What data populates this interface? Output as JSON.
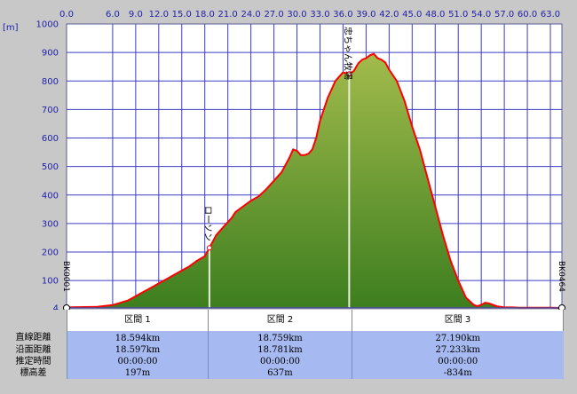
{
  "chart_data": {
    "type": "area",
    "ylabel": "[m]",
    "xlim": [
      0,
      64.5
    ],
    "ylim": [
      4,
      1000
    ],
    "y_ticks": [
      "1000",
      "900",
      "800",
      "700",
      "600",
      "500",
      "400",
      "300",
      "200",
      "100",
      "4"
    ],
    "y_tick_values": [
      1000,
      900,
      800,
      700,
      600,
      500,
      400,
      300,
      200,
      100,
      4
    ],
    "x_ticks": [
      "0.0",
      "6.0",
      "9.0",
      "12.0",
      "15.0",
      "18.0",
      "21.0",
      "24.0",
      "27.0",
      "30.0",
      "33.0",
      "36.0",
      "39.0",
      "42.0",
      "45.0",
      "48.0",
      "51.0",
      "54.0",
      "57.0",
      "60.0",
      "63.0"
    ],
    "x_tick_values": [
      0,
      6,
      9,
      12,
      15,
      18,
      21,
      24,
      27,
      30,
      33,
      36,
      39,
      42,
      45,
      48,
      51,
      54,
      57,
      60,
      63
    ],
    "grid": true,
    "colors": {
      "fill_top": "#a2bb4c",
      "fill_bottom": "#3d7e1f",
      "line": "#ff0000",
      "grid": "#3c3cc8",
      "plot_bg": "#ffffff"
    },
    "x": [
      0,
      4,
      6,
      7,
      8,
      9,
      10,
      11,
      12,
      13,
      14,
      15,
      16,
      17,
      18,
      18.6,
      19.5,
      20.5,
      21.5,
      22,
      23,
      24,
      25,
      26,
      27,
      28,
      29,
      29.5,
      30,
      30.5,
      31,
      31.5,
      32,
      32.5,
      33,
      34,
      35,
      36,
      36.8,
      37.4,
      38,
      38.5,
      39,
      39.5,
      40,
      40.5,
      41,
      41.5,
      42,
      43,
      44,
      45,
      46,
      47,
      48,
      49,
      50,
      51,
      52,
      53,
      53.5,
      54,
      54.5,
      55,
      56,
      57,
      58,
      59,
      60,
      61,
      62,
      63,
      64.3
    ],
    "y": [
      6,
      8,
      14,
      22,
      30,
      45,
      60,
      75,
      90,
      105,
      120,
      135,
      150,
      170,
      185,
      215,
      260,
      290,
      320,
      340,
      360,
      380,
      395,
      420,
      450,
      480,
      530,
      560,
      555,
      540,
      540,
      545,
      560,
      600,
      660,
      740,
      800,
      830,
      825,
      835,
      862,
      875,
      880,
      890,
      895,
      880,
      875,
      865,
      840,
      800,
      730,
      640,
      560,
      460,
      360,
      260,
      170,
      100,
      40,
      15,
      10,
      15,
      22,
      20,
      10,
      6,
      6,
      5,
      5,
      5,
      5,
      5,
      4
    ],
    "markers": [
      {
        "name": "ローソン",
        "x": 18.6,
        "y": 215
      },
      {
        "name": "忠ちゃん牧場",
        "x": 36.8,
        "y": 825
      }
    ],
    "end_labels": [
      "BK0001",
      "BK0464"
    ]
  },
  "summary": {
    "row_labels": [
      "直線距離",
      "沿面距離",
      "推定時間",
      "標高差"
    ],
    "segments": [
      {
        "name": "区間 1",
        "straight": "18.594km",
        "surface": "18.597km",
        "time": "00:00:00",
        "elev": "197m"
      },
      {
        "name": "区間 2",
        "straight": "18.759km",
        "surface": "18.781km",
        "time": "00:00:00",
        "elev": "637m"
      },
      {
        "name": "区間 3",
        "straight": "27.190km",
        "surface": "27.233km",
        "time": "00:00:00",
        "elev": "-834m"
      }
    ]
  }
}
